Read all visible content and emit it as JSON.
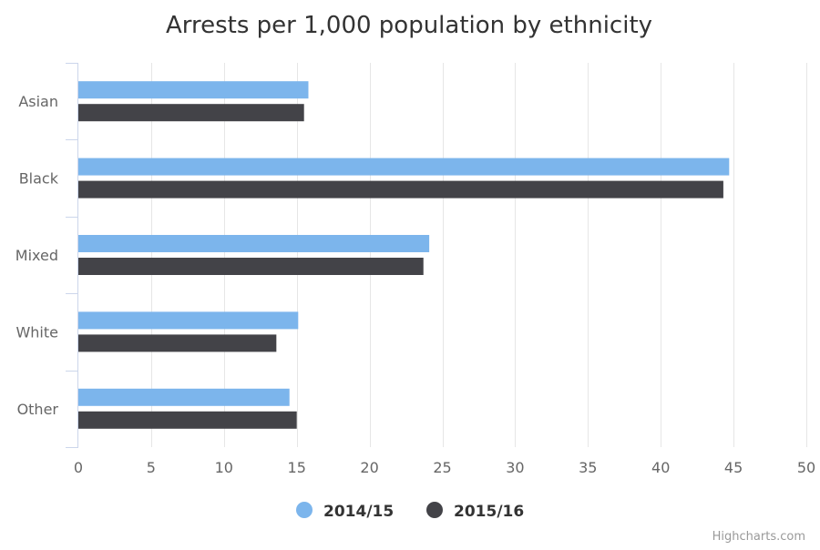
{
  "chart_data": {
    "type": "bar",
    "orientation": "horizontal",
    "title": "Arrests per 1,000 population by ethnicity",
    "categories": [
      "Asian",
      "Black",
      "Mixed",
      "White",
      "Other"
    ],
    "series": [
      {
        "name": "2014/15",
        "color": "#7cb5ec",
        "values": [
          15.8,
          44.7,
          24.1,
          15.1,
          14.5
        ]
      },
      {
        "name": "2015/16",
        "color": "#434348",
        "values": [
          15.5,
          44.3,
          23.7,
          13.6,
          15.0
        ]
      }
    ],
    "xlabel": "",
    "ylabel": "",
    "xlim": [
      0,
      50
    ],
    "xticks": [
      0,
      5,
      10,
      15,
      20,
      25,
      30,
      35,
      40,
      45,
      50
    ],
    "grid": true,
    "legend": "bottom-center"
  },
  "credits": "Highcharts.com"
}
